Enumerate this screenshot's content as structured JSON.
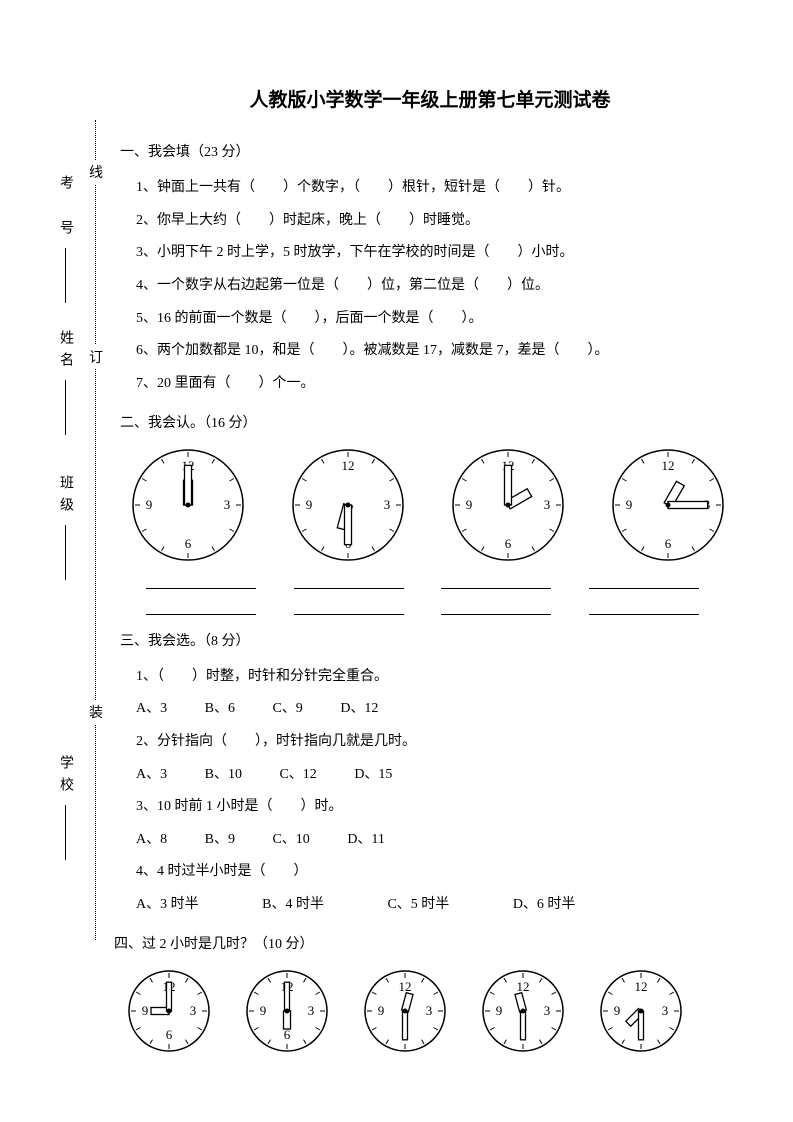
{
  "title": "人教版小学数学一年级上册第七单元测试卷",
  "binding": {
    "labels": [
      "学校",
      "班级",
      "姓名",
      "考 号"
    ],
    "chars": [
      "装",
      "订",
      "线"
    ]
  },
  "s1": {
    "head": "一、我会填（23 分）",
    "q1": "1、钟面上一共有（　　）个数字，（　　）根针，短针是（　　）针。",
    "q2": "2、你早上大约（　　）时起床，晚上（　　）时睡觉。",
    "q3": "3、小明下午 2 时上学，5 时放学，下午在学校的时间是（　　）小时。",
    "q4": "4、一个数字从右边起第一位是（　　）位，第二位是（　　）位。",
    "q5": "5、16 的前面一个数是（　　），后面一个数是（　　）。",
    "q6": "6、两个加数都是 10，和是（　　）。被减数是 17，减数是 7，差是（　　）。",
    "q7": "7、20 里面有（　　）个一。"
  },
  "s2": {
    "head": "二、我会认。（16 分）",
    "clocks": [
      {
        "r": 55,
        "hourAngle": 0,
        "minuteAngle": 0,
        "numbers": [
          "12",
          "3",
          "6",
          "9"
        ]
      },
      {
        "r": 55,
        "hourAngle": 195,
        "minuteAngle": 180,
        "numbers": [
          "12",
          "3",
          "6",
          "9"
        ]
      },
      {
        "r": 55,
        "hourAngle": 60,
        "minuteAngle": 0,
        "numbers": [
          "12",
          "3",
          "6",
          "9"
        ]
      },
      {
        "r": 55,
        "hourAngle": 30,
        "minuteAngle": 90,
        "numbers": [
          "12",
          "3",
          "6",
          "9"
        ]
      }
    ],
    "line_w": 110,
    "line_gap": 34
  },
  "s3": {
    "head": "三、我会选。（8 分）",
    "q1": "1、（　　）时整，时针和分针完全重合。",
    "q1opts": {
      "A": "A、3",
      "B": "B、6",
      "C": "C、9",
      "D": "D、12"
    },
    "q2": "2、分针指向（　　），时针指向几就是几时。",
    "q2opts": {
      "A": "A、3",
      "B": "B、10",
      "C": "C、12",
      "D": "D、15"
    },
    "q3": "3、10 时前 1 小时是（　　）时。",
    "q3opts": {
      "A": "A、8",
      "B": "B、9",
      "C": "C、10",
      "D": "D、11"
    },
    "q4": "4、4 时过半小时是（　　）",
    "q4opts": {
      "A": "A、3 时半",
      "B": "B、4 时半",
      "C": "C、5 时半",
      "D": "D、6 时半"
    }
  },
  "s4": {
    "head": "四、过 2 小时是几时？（10 分）",
    "clocks": [
      {
        "r": 40,
        "hourAngle": 270,
        "minuteAngle": 0,
        "numbers": [
          "12",
          "3",
          "6",
          "9"
        ]
      },
      {
        "r": 40,
        "hourAngle": 180,
        "minuteAngle": 0,
        "numbers": [
          "12",
          "3",
          "6",
          "9"
        ]
      },
      {
        "r": 40,
        "hourAngle": 15,
        "minuteAngle": 180,
        "numbers": [
          "12",
          "3",
          "6",
          "9"
        ]
      },
      {
        "r": 40,
        "hourAngle": 345,
        "minuteAngle": 180,
        "numbers": [
          "12",
          "3",
          "6",
          "9"
        ]
      },
      {
        "r": 40,
        "hourAngle": 225,
        "minuteAngle": 180,
        "numbers": [
          "12",
          "3",
          "6",
          "9"
        ]
      }
    ]
  },
  "style": {
    "clock_stroke": "#000000",
    "clock_fill": "#ffffff",
    "hand_fill": "#ffffff",
    "num_font": 13
  }
}
